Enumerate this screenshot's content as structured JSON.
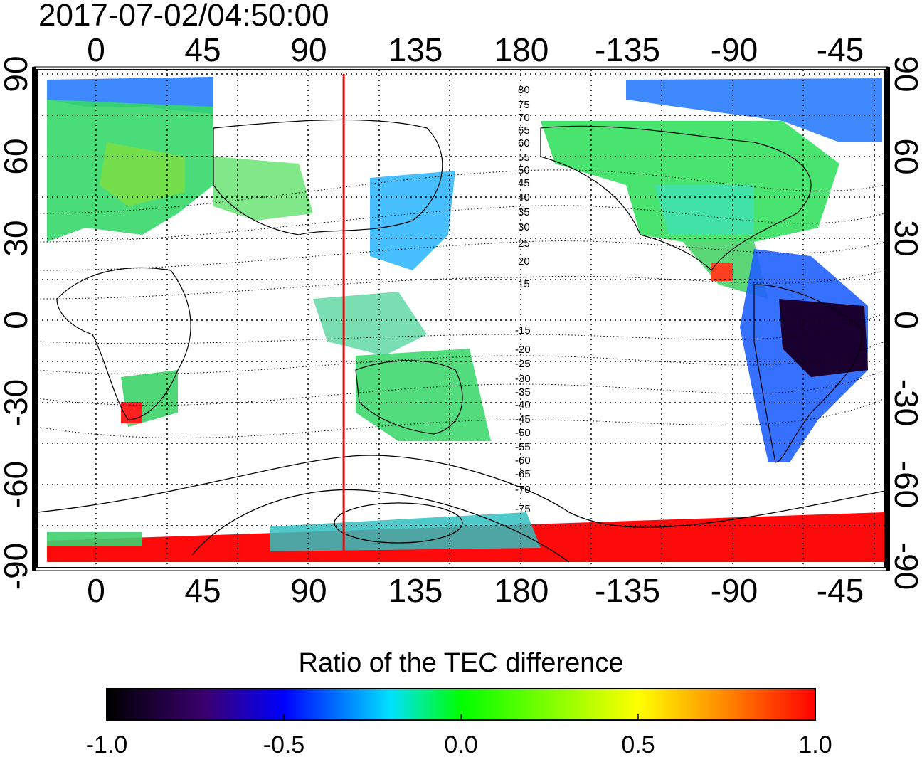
{
  "timestamp": "2017-07-02/04:50:00",
  "lon_ticks_top": [
    "0",
    "45",
    "90",
    "135",
    "180",
    "-135",
    "-90",
    "-45"
  ],
  "lon_ticks_bottom": [
    "0",
    "45",
    "90",
    "135",
    "180",
    "-135",
    "-90",
    "-45"
  ],
  "lat_ticks_left": [
    "90",
    "60",
    "30",
    "0",
    "-30",
    "-60",
    "-90"
  ],
  "lat_ticks_right": [
    "90",
    "60",
    "30",
    "0",
    "-30",
    "-60",
    "-90"
  ],
  "contour_labels_north": [
    "80",
    "75",
    "70",
    "65",
    "60",
    "55",
    "50",
    "45",
    "40",
    "35",
    "30",
    "25",
    "20",
    "15"
  ],
  "contour_labels_south": [
    "-15",
    "-20",
    "-25",
    "-30",
    "-35",
    "-40",
    "-45",
    "-50",
    "-55",
    "-60",
    "-65",
    "-70",
    "-75"
  ],
  "marker_longitude": 105,
  "colorbar": {
    "title": "Ratio of the TEC difference",
    "tick_labels": [
      "-1.0",
      "-0.5",
      "0.0",
      "0.5",
      "1.0"
    ],
    "min": -1.0,
    "max": 1.0,
    "colors": [
      "#000000",
      "#3a0070",
      "#0000ff",
      "#00e0ff",
      "#00ff00",
      "#ffff00",
      "#ff8000",
      "#ff0000"
    ]
  },
  "colors": {
    "marker_line": "#e01010",
    "ocean": "#ffffff",
    "grid": "#000000"
  }
}
